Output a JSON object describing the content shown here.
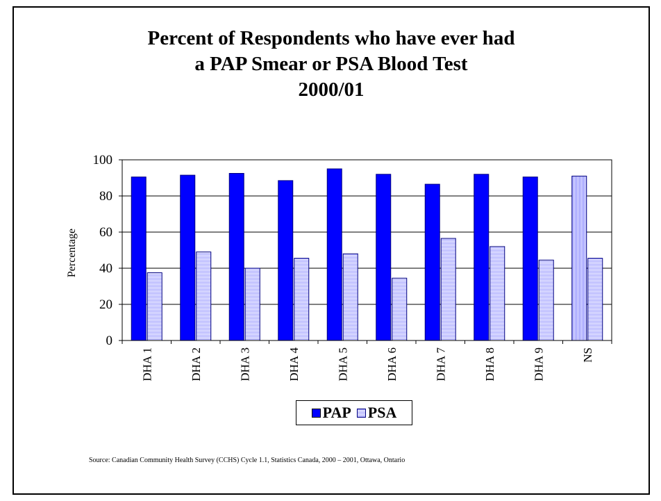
{
  "title_lines": [
    "Percent of Respondents who have ever had",
    "a PAP Smear or PSA Blood Test",
    "2000/01"
  ],
  "source": "Source:  Canadian Community Health Survey (CCHS) Cycle 1.1, Statistics Canada, 2000 – 2001, Ottawa, Ontario",
  "colors": {
    "pap": "#0000ff",
    "psa_stripe": "#9999ff",
    "psa_edge": "#000080"
  },
  "chart_data": {
    "type": "bar",
    "title": "Percent of Respondents who have ever had a PAP Smear or PSA Blood Test 2000/01",
    "xlabel": "",
    "ylabel": "Percentage",
    "ylim": [
      0,
      100
    ],
    "yticks": [
      "0",
      "20",
      "40",
      "60",
      "80",
      "100"
    ],
    "grid": true,
    "legend_position": "bottom",
    "categories": [
      "DHA 1",
      "DHA 2",
      "DHA 3",
      "DHA 4",
      "DHA 5",
      "DHA 6",
      "DHA 7",
      "DHA 8",
      "DHA 9",
      "NS"
    ],
    "series": [
      {
        "name": "PAP",
        "values": [
          90.5,
          91.5,
          92.5,
          88.5,
          95,
          92,
          86.5,
          92,
          90.5,
          91
        ]
      },
      {
        "name": "PSA",
        "values": [
          37.5,
          49,
          40,
          45.5,
          48,
          34.5,
          56.5,
          52,
          44.5,
          45.5
        ]
      }
    ]
  }
}
